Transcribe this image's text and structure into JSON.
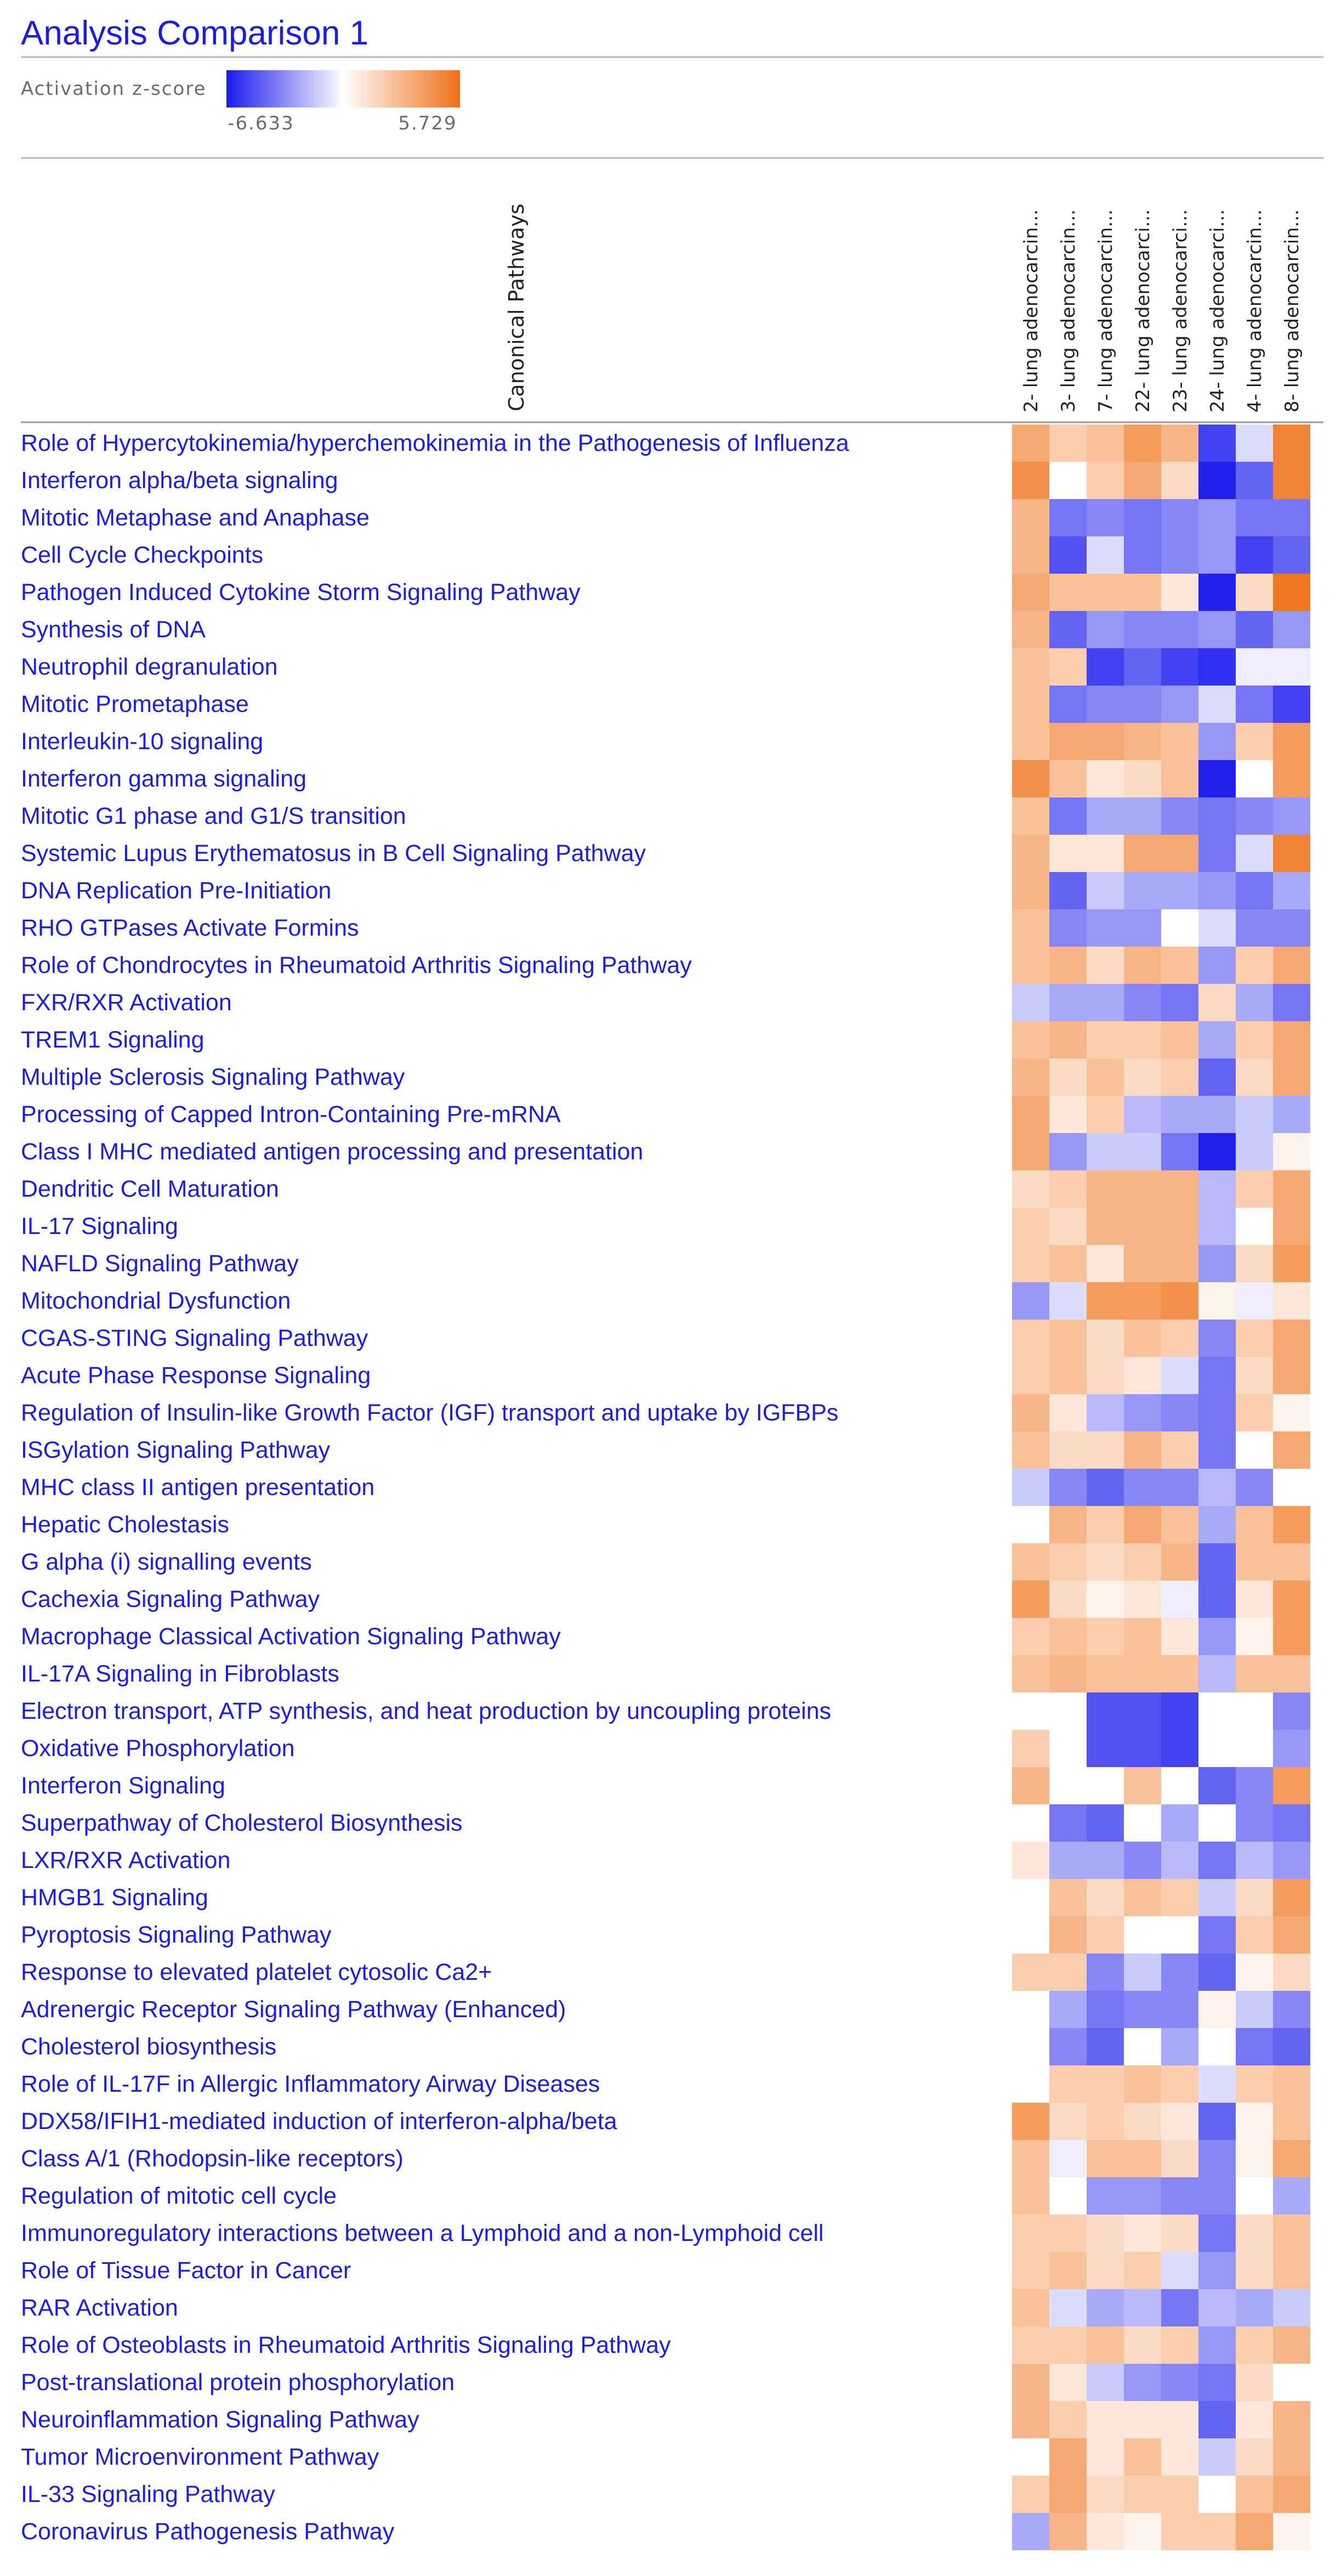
{
  "title": "Analysis Comparison 1",
  "legend": {
    "label": "Activation z-score",
    "min_label": "-6.633",
    "max_label": "5.729",
    "min": -6.633,
    "max": 5.729,
    "colors": {
      "negative": "#1a1aee",
      "neutral": "#ffffff",
      "positive": "#ee7118"
    }
  },
  "row_header": "Canonical Pathways",
  "chart_data": {
    "type": "heatmap",
    "title": "Analysis Comparison 1",
    "value_label": "Activation z-score",
    "zlim": [
      -6.633,
      5.729
    ],
    "columns": [
      "2- lung adenocarcin...",
      "3- lung adenocarcin...",
      "7- lung adenocarcin...",
      "22- lung adenocarci...",
      "23- lung adenocarci...",
      "24- lung adenocarci...",
      "4- lung adenocarcin...",
      "8- lung adenocarcin..."
    ],
    "rows": [
      {
        "label": "Role of Hypercytokinemia/hyperchemokinemia in the Pathogenesis of Influenza",
        "values": [
          3.5,
          2.0,
          2.5,
          4.0,
          3.0,
          -5.5,
          -1.0,
          5.0
        ]
      },
      {
        "label": "Interferon alpha/beta signaling",
        "values": [
          4.5,
          0.0,
          2.0,
          3.5,
          1.5,
          -6.5,
          -4.5,
          5.0
        ]
      },
      {
        "label": "Mitotic Metaphase and Anaphase",
        "values": [
          3.0,
          -4.0,
          -3.5,
          -4.0,
          -3.5,
          -3.0,
          -4.0,
          -4.0
        ]
      },
      {
        "label": "Cell Cycle Checkpoints",
        "values": [
          3.0,
          -5.0,
          -1.0,
          -4.0,
          -3.5,
          -3.0,
          -5.5,
          -4.5
        ]
      },
      {
        "label": "Pathogen Induced Cytokine Storm Signaling Pathway",
        "values": [
          3.5,
          2.5,
          2.5,
          2.5,
          1.0,
          -6.5,
          1.5,
          5.5
        ]
      },
      {
        "label": "Synthesis of DNA",
        "values": [
          3.0,
          -4.5,
          -3.0,
          -3.5,
          -3.5,
          -3.0,
          -4.5,
          -3.0
        ]
      },
      {
        "label": "Neutrophil degranulation",
        "values": [
          2.5,
          2.0,
          -5.5,
          -4.5,
          -5.5,
          -6.0,
          -0.5,
          -0.5
        ]
      },
      {
        "label": "Mitotic Prometaphase",
        "values": [
          2.5,
          -4.0,
          -3.5,
          -3.5,
          -3.0,
          -1.0,
          -4.0,
          -5.5
        ]
      },
      {
        "label": "Interleukin-10 signaling",
        "values": [
          2.5,
          3.5,
          3.5,
          3.0,
          2.5,
          -3.0,
          2.0,
          4.0
        ]
      },
      {
        "label": "Interferon gamma signaling",
        "values": [
          4.5,
          2.5,
          1.0,
          1.5,
          2.5,
          -6.5,
          0.0,
          4.0
        ]
      },
      {
        "label": "Mitotic G1 phase and G1/S transition",
        "values": [
          2.5,
          -4.0,
          -2.5,
          -2.5,
          -3.5,
          -4.0,
          -3.5,
          -3.0
        ]
      },
      {
        "label": "Systemic Lupus Erythematosus in B Cell Signaling Pathway",
        "values": [
          3.0,
          1.0,
          1.0,
          3.5,
          3.5,
          -4.0,
          -1.0,
          5.0
        ]
      },
      {
        "label": "DNA Replication Pre-Initiation",
        "values": [
          3.0,
          -4.5,
          -1.5,
          -2.5,
          -2.5,
          -3.0,
          -4.0,
          -2.5
        ]
      },
      {
        "label": "RHO GTPases Activate Formins",
        "values": [
          2.5,
          -3.5,
          -3.0,
          -3.0,
          0.0,
          -1.0,
          -3.5,
          -3.5
        ]
      },
      {
        "label": "Role of Chondrocytes in Rheumatoid Arthritis Signaling Pathway",
        "values": [
          2.5,
          3.0,
          1.5,
          3.0,
          2.5,
          -3.0,
          2.0,
          3.5
        ]
      },
      {
        "label": "FXR/RXR Activation",
        "values": [
          -1.5,
          -2.5,
          -2.5,
          -3.5,
          -4.0,
          1.5,
          -2.5,
          -4.0
        ]
      },
      {
        "label": "TREM1 Signaling",
        "values": [
          2.5,
          3.0,
          2.0,
          2.0,
          2.5,
          -2.5,
          2.0,
          3.5
        ]
      },
      {
        "label": "Multiple Sclerosis Signaling Pathway",
        "values": [
          3.0,
          1.5,
          2.5,
          1.5,
          2.0,
          -4.5,
          1.5,
          3.5
        ]
      },
      {
        "label": "Processing of Capped Intron-Containing Pre-mRNA",
        "values": [
          3.5,
          1.0,
          2.0,
          -2.0,
          -2.5,
          -2.5,
          -1.5,
          -2.5
        ]
      },
      {
        "label": "Class I MHC mediated antigen processing and presentation",
        "values": [
          3.5,
          -3.0,
          -1.5,
          -1.5,
          -4.0,
          -6.5,
          -1.5,
          0.5
        ]
      },
      {
        "label": "Dendritic Cell Maturation",
        "values": [
          1.5,
          2.0,
          3.0,
          3.0,
          3.0,
          -2.0,
          2.0,
          3.5
        ]
      },
      {
        "label": "IL-17 Signaling",
        "values": [
          2.0,
          1.5,
          3.0,
          3.0,
          3.0,
          -2.0,
          0.0,
          3.5
        ]
      },
      {
        "label": "NAFLD Signaling Pathway",
        "values": [
          2.0,
          2.5,
          1.0,
          3.0,
          3.0,
          -3.0,
          1.5,
          4.0
        ]
      },
      {
        "label": "Mitochondrial Dysfunction",
        "values": [
          -3.0,
          -1.0,
          4.0,
          4.0,
          4.5,
          0.5,
          -0.5,
          1.0
        ]
      },
      {
        "label": "CGAS-STING Signaling Pathway",
        "values": [
          2.0,
          2.5,
          1.5,
          2.5,
          2.0,
          -3.5,
          2.0,
          3.5
        ]
      },
      {
        "label": "Acute Phase Response Signaling",
        "values": [
          2.0,
          2.5,
          1.5,
          1.0,
          -1.0,
          -4.0,
          1.5,
          3.5
        ]
      },
      {
        "label": "Regulation of Insulin-like Growth Factor (IGF) transport and uptake by IGFBPs",
        "values": [
          3.0,
          1.0,
          -2.0,
          -3.0,
          -3.5,
          -4.0,
          2.0,
          0.5
        ]
      },
      {
        "label": "ISGylation Signaling Pathway",
        "values": [
          2.5,
          1.5,
          1.5,
          3.0,
          2.0,
          -4.0,
          0.0,
          3.5
        ]
      },
      {
        "label": "MHC class II antigen presentation",
        "values": [
          -1.5,
          -3.5,
          -4.5,
          -3.5,
          -3.5,
          -2.0,
          -3.5,
          0.0
        ]
      },
      {
        "label": "Hepatic Cholestasis",
        "values": [
          0.0,
          3.0,
          2.0,
          3.5,
          2.5,
          -2.5,
          2.5,
          4.0
        ]
      },
      {
        "label": "G alpha (i) signalling events",
        "values": [
          2.5,
          2.0,
          1.5,
          2.0,
          3.0,
          -4.5,
          2.5,
          2.5
        ]
      },
      {
        "label": "Cachexia Signaling Pathway",
        "values": [
          4.0,
          1.5,
          0.5,
          1.0,
          -0.5,
          -4.5,
          1.0,
          4.0
        ]
      },
      {
        "label": "Macrophage Classical Activation Signaling Pathway",
        "values": [
          2.0,
          2.5,
          2.0,
          2.5,
          1.0,
          -3.0,
          0.5,
          4.0
        ]
      },
      {
        "label": "IL-17A Signaling in Fibroblasts",
        "values": [
          2.5,
          3.0,
          2.5,
          2.5,
          2.5,
          -2.0,
          2.5,
          2.5
        ]
      },
      {
        "label": "Electron transport, ATP synthesis, and heat production by uncoupling proteins",
        "values": [
          0.0,
          0.0,
          -5.0,
          -5.0,
          -5.5,
          0.0,
          0.0,
          -3.5
        ]
      },
      {
        "label": "Oxidative Phosphorylation",
        "values": [
          2.0,
          0.0,
          -5.0,
          -5.0,
          -5.5,
          0.0,
          0.0,
          -3.0
        ]
      },
      {
        "label": "Interferon Signaling",
        "values": [
          3.0,
          0.0,
          0.0,
          2.5,
          0.0,
          -4.5,
          -3.5,
          4.0
        ]
      },
      {
        "label": "Superpathway of Cholesterol Biosynthesis",
        "values": [
          0.0,
          -4.0,
          -4.5,
          0.0,
          -2.5,
          0.0,
          -3.5,
          -4.0
        ]
      },
      {
        "label": "LXR/RXR Activation",
        "values": [
          1.0,
          -2.5,
          -2.5,
          -3.5,
          -2.0,
          -4.0,
          -2.0,
          -3.0
        ]
      },
      {
        "label": "HMGB1 Signaling",
        "values": [
          0.0,
          2.5,
          1.5,
          2.5,
          2.0,
          -1.5,
          1.5,
          4.0
        ]
      },
      {
        "label": "Pyroptosis Signaling Pathway",
        "values": [
          0.0,
          3.0,
          2.0,
          0.0,
          0.0,
          -4.0,
          2.0,
          3.5
        ]
      },
      {
        "label": "Response to elevated platelet cytosolic Ca2+",
        "values": [
          2.0,
          2.0,
          -3.5,
          -1.5,
          -3.5,
          -4.5,
          0.5,
          1.5
        ]
      },
      {
        "label": "Adrenergic Receptor Signaling Pathway (Enhanced)",
        "values": [
          0.0,
          -2.5,
          -4.0,
          -3.5,
          -3.5,
          0.5,
          -1.5,
          -3.5
        ]
      },
      {
        "label": "Cholesterol biosynthesis",
        "values": [
          0.0,
          -3.5,
          -4.5,
          0.0,
          -2.5,
          0.0,
          -4.0,
          -4.5
        ]
      },
      {
        "label": "Role of IL-17F in Allergic Inflammatory Airway Diseases",
        "values": [
          0.0,
          2.0,
          2.0,
          2.5,
          2.0,
          -1.0,
          2.0,
          2.5
        ]
      },
      {
        "label": "DDX58/IFIH1-mediated induction of interferon-alpha/beta",
        "values": [
          4.0,
          1.5,
          2.0,
          1.5,
          1.0,
          -4.5,
          0.5,
          2.5
        ]
      },
      {
        "label": "Class A/1 (Rhodopsin-like receptors)",
        "values": [
          2.5,
          -0.5,
          2.5,
          2.5,
          1.5,
          -3.5,
          0.5,
          3.5
        ]
      },
      {
        "label": "Regulation of mitotic cell cycle",
        "values": [
          2.5,
          0.0,
          -3.0,
          -3.0,
          -3.5,
          -3.5,
          0.0,
          -2.5
        ]
      },
      {
        "label": "Immunoregulatory interactions between a Lymphoid and a non-Lymphoid cell",
        "values": [
          2.0,
          2.0,
          1.5,
          1.0,
          1.5,
          -4.0,
          1.5,
          2.5
        ]
      },
      {
        "label": "Role of Tissue Factor in Cancer",
        "values": [
          2.0,
          2.5,
          1.5,
          2.0,
          -1.0,
          -3.0,
          1.5,
          2.5
        ]
      },
      {
        "label": "RAR Activation",
        "values": [
          2.5,
          -1.0,
          -2.5,
          -2.0,
          -4.0,
          -2.0,
          -2.5,
          -1.5
        ]
      },
      {
        "label": "Role of Osteoblasts in Rheumatoid Arthritis Signaling Pathway",
        "values": [
          2.0,
          2.0,
          2.5,
          1.5,
          2.0,
          -3.0,
          2.0,
          3.0
        ]
      },
      {
        "label": "Post-translational protein phosphorylation",
        "values": [
          3.0,
          1.0,
          -1.5,
          -3.0,
          -3.5,
          -4.0,
          1.5,
          0.0
        ]
      },
      {
        "label": "Neuroinflammation Signaling Pathway",
        "values": [
          3.0,
          2.0,
          1.0,
          1.0,
          1.0,
          -4.5,
          1.0,
          3.0
        ]
      },
      {
        "label": "Tumor Microenvironment Pathway",
        "values": [
          0.0,
          3.5,
          1.0,
          2.5,
          1.0,
          -1.5,
          1.5,
          3.0
        ]
      },
      {
        "label": "IL-33 Signaling Pathway",
        "values": [
          2.0,
          3.5,
          1.5,
          2.0,
          2.0,
          0.0,
          2.5,
          3.5
        ]
      },
      {
        "label": "Coronavirus Pathogenesis Pathway",
        "values": [
          -2.5,
          3.0,
          1.0,
          0.5,
          2.0,
          2.0,
          3.5,
          0.5
        ]
      }
    ]
  }
}
